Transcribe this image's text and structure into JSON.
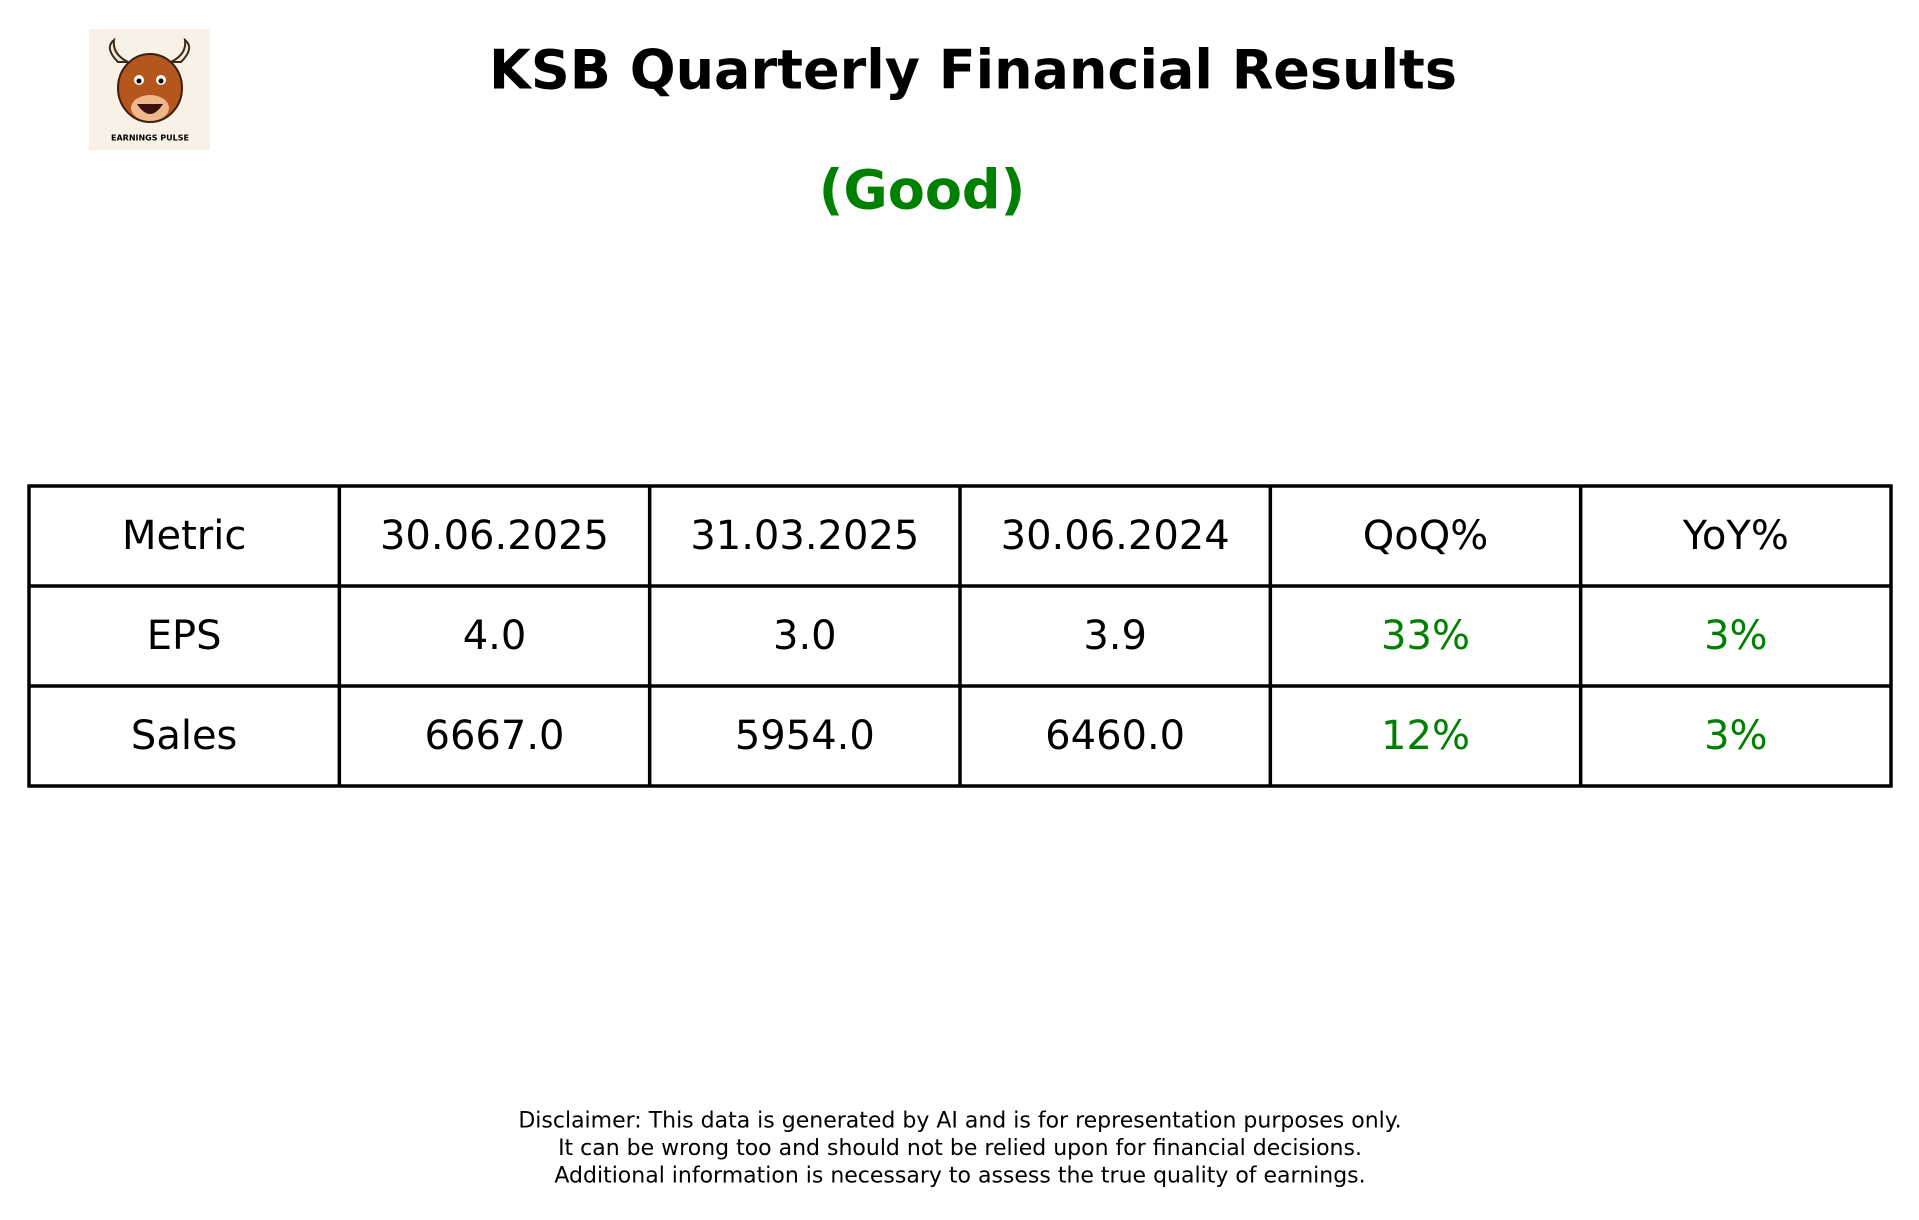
{
  "header": {
    "title": "KSB Quarterly Financial Results",
    "rating": "(Good)"
  },
  "logo": {
    "caption": "EARNINGS PULSE"
  },
  "table": {
    "columns": [
      "Metric",
      "30.06.2025",
      "31.03.2025",
      "30.06.2024",
      "QoQ%",
      "YoY%"
    ],
    "rows": [
      [
        "EPS",
        "4.0",
        "3.0",
        "3.9",
        "33%",
        "3%"
      ],
      [
        "Sales",
        "6667.0",
        "5954.0",
        "6460.0",
        "12%",
        "3%"
      ]
    ]
  },
  "disclaimer": [
    "Disclaimer: This data is generated by AI and is for representation purposes only.",
    "It can be wrong too and should not be relied upon for financial decisions.",
    "Additional information is necessary to assess the true quality of earnings."
  ]
}
